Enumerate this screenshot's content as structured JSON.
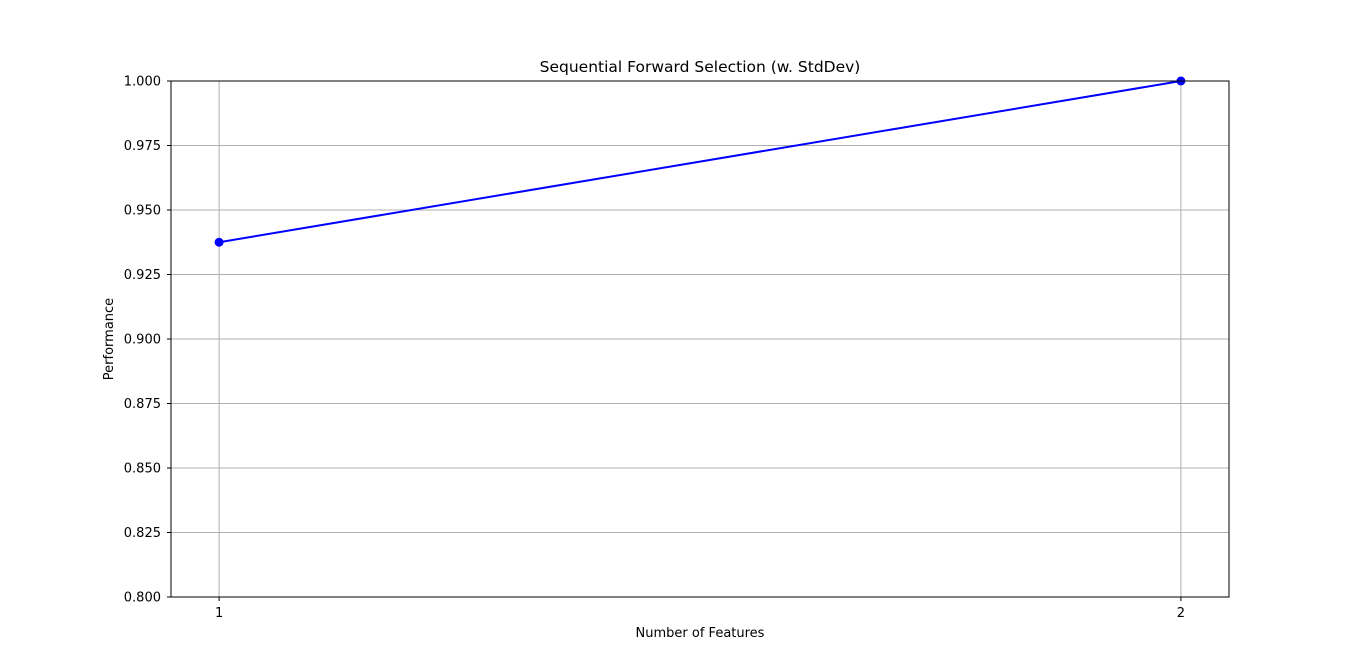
{
  "chart_data": {
    "type": "line",
    "title": "Sequential Forward Selection (w. StdDev)",
    "xlabel": "Number of Features",
    "ylabel": "Performance",
    "x": [
      1,
      2
    ],
    "x_tick_labels": [
      "1",
      "2"
    ],
    "y_tick_labels": [
      "0.800",
      "0.825",
      "0.850",
      "0.875",
      "0.900",
      "0.925",
      "0.950",
      "0.975",
      "1.000"
    ],
    "y_ticks": [
      0.8,
      0.825,
      0.85,
      0.875,
      0.9,
      0.925,
      0.95,
      0.975,
      1.0
    ],
    "ylim": [
      0.8,
      1.0
    ],
    "xlim": [
      0.95,
      2.05
    ],
    "grid": true,
    "series": [
      {
        "values": [
          0.9375,
          1.0
        ],
        "color": "#0000ff",
        "marker": "circle"
      }
    ]
  }
}
